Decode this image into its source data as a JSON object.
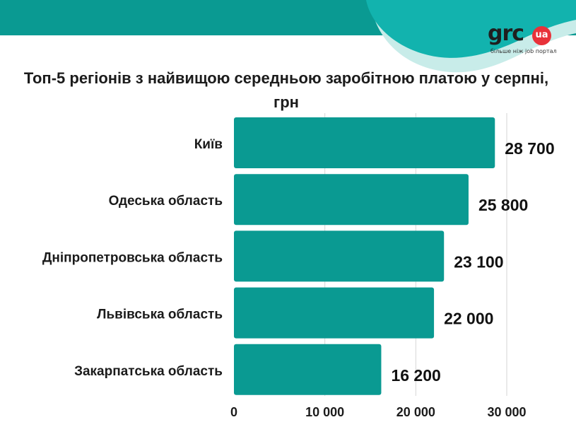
{
  "brand": {
    "logo_text": "grc",
    "logo_badge": "ua",
    "tagline": "більше ніж job портал",
    "colors": {
      "teal": "#0a9a92",
      "teal_light": "#12b3ae",
      "mint": "#c8ece9",
      "bar": "#0a9a92",
      "grid": "#d6d6d6",
      "badge": "#e8323a"
    }
  },
  "chart_data": {
    "type": "bar",
    "orientation": "horizontal",
    "title": "Топ-5 регіонів з найвищою середньою заробітною платою у серпні, грн",
    "categories": [
      "Київ",
      "Одеська область",
      "Дніпропетровська область",
      "Львівська область",
      "Закарпатська область"
    ],
    "values": [
      28700,
      25800,
      23100,
      22000,
      16200
    ],
    "value_labels": [
      "28 700",
      "25 800",
      "23 100",
      "22 000",
      "16 200"
    ],
    "xlim": [
      0,
      30000
    ],
    "xticks": [
      0,
      10000,
      20000,
      30000
    ],
    "xtick_labels": [
      "0",
      "10 000",
      "20 000",
      "30 000"
    ],
    "grid": true,
    "legend": "none"
  }
}
